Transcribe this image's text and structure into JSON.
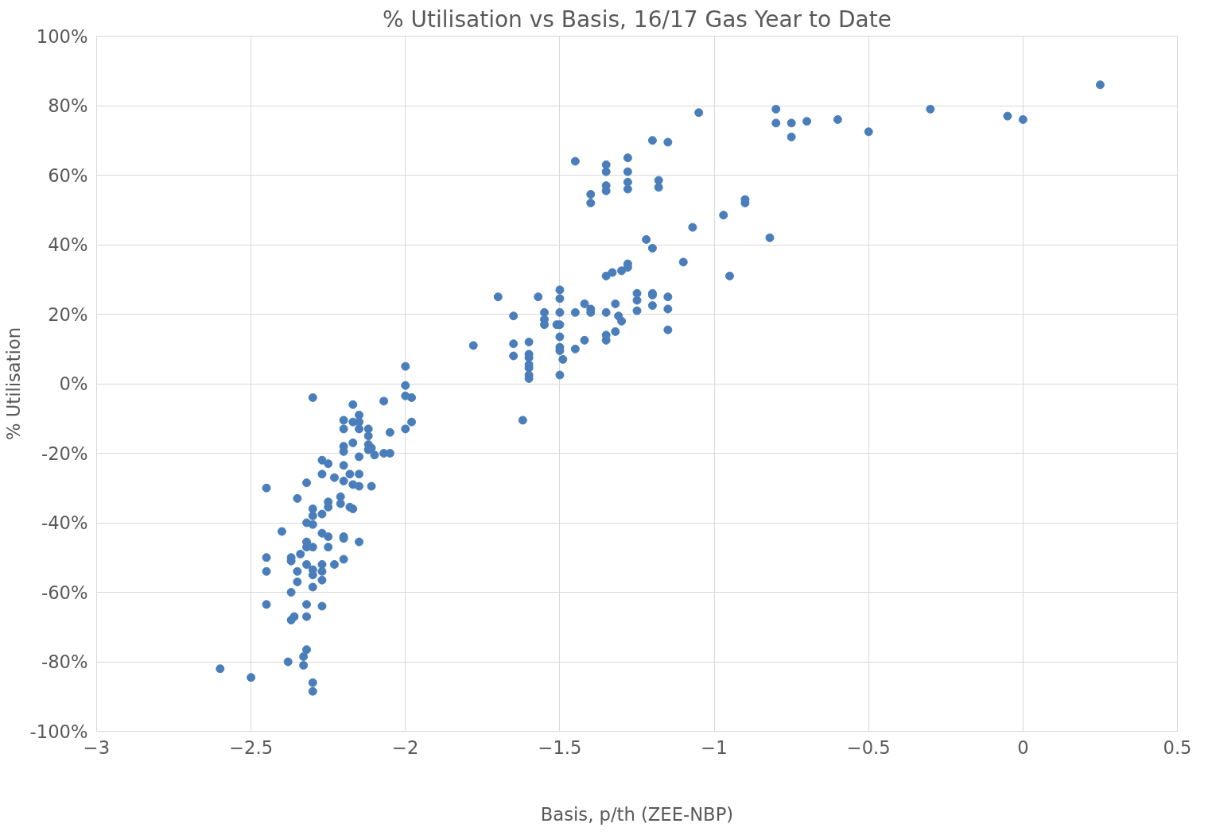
{
  "chart_data": {
    "type": "scatter",
    "title": "% Utilisation vs Basis, 16/17 Gas Year to Date",
    "xlabel": "Basis, p/th (ZEE-NBP)",
    "ylabel": "% Utilisation",
    "xlim": [
      -3,
      0.5
    ],
    "xticks": [
      -3,
      -2.5,
      -2,
      -1.5,
      -1,
      -0.5,
      0,
      0.5
    ],
    "ylim": [
      -100,
      100
    ],
    "yticks": [
      {
        "value": -100,
        "label": "-100%"
      },
      {
        "value": -80,
        "label": "-80%"
      },
      {
        "value": -60,
        "label": "-60%"
      },
      {
        "value": -40,
        "label": "-40%"
      },
      {
        "value": -20,
        "label": "-20%"
      },
      {
        "value": 0,
        "label": "0%"
      },
      {
        "value": 20,
        "label": "20%"
      },
      {
        "value": 40,
        "label": "40%"
      },
      {
        "value": 60,
        "label": "60%"
      },
      {
        "value": 80,
        "label": "80%"
      },
      {
        "value": 100,
        "label": "100%"
      }
    ],
    "grid": true,
    "marker": "circle",
    "series": [
      {
        "color": "#4a7ebb",
        "x": [
          0.25,
          0,
          -0.05,
          -0.3,
          -0.5,
          -0.6,
          -0.7,
          -0.75,
          -0.75,
          -0.8,
          -0.8,
          -1.05,
          -1.15,
          -1.2,
          -1.18,
          -1.18,
          -1.28,
          -1.28,
          -1.28,
          -1.28,
          -1.35,
          -1.35,
          -1.35,
          -1.35,
          -1.4,
          -1.4,
          -1.45,
          -0.9,
          -0.9,
          -0.97,
          -1.07,
          -0.82,
          -0.95,
          -1.1,
          -1.22,
          -1.2,
          -1.28,
          -1.28,
          -1.3,
          -1.33,
          -1.35,
          -1.7,
          -1.57,
          -1.5,
          -1.5,
          -1.42,
          -1.32,
          -1.25,
          -1.25,
          -1.2,
          -1.2,
          -1.15,
          -1.15,
          -1.2,
          -1.25,
          -1.65,
          -1.55,
          -1.55,
          -1.55,
          -1.51,
          -1.5,
          -1.5,
          -1.45,
          -1.4,
          -1.4,
          -1.35,
          -1.31,
          -1.3,
          -1.32,
          -1.35,
          -1.35,
          -1.42,
          -1.45,
          -1.15,
          -1.5,
          -1.5,
          -1.5,
          -1.49,
          -1.5,
          -1.6,
          -1.6,
          -1.6,
          -1.6,
          -1.6,
          -1.6,
          -1.6,
          -1.65,
          -1.65,
          -1.78,
          -1.62,
          -2.0,
          -2.0,
          -2.0,
          -1.98,
          -2.0,
          -1.98,
          -2.07,
          -2.3,
          -2.17,
          -2.15,
          -2.2,
          -2.17,
          -2.15,
          -2.15,
          -2.2,
          -2.12,
          -2.12,
          -2.05,
          -2.2,
          -2.17,
          -2.2,
          -2.12,
          -2.11,
          -2.12,
          -2.1,
          -2.07,
          -2.05,
          -2.15,
          -2.27,
          -2.25,
          -2.2,
          -2.15,
          -2.18,
          -2.23,
          -2.27,
          -2.32,
          -2.45,
          -2.2,
          -2.17,
          -2.15,
          -2.11,
          -2.21,
          -2.25,
          -2.21,
          -2.18,
          -2.17,
          -2.25,
          -2.35,
          -2.3,
          -2.3,
          -2.32,
          -2.3,
          -2.27,
          -2.27,
          -2.25,
          -2.2,
          -2.2,
          -2.15,
          -2.25,
          -2.3,
          -2.32,
          -2.32,
          -2.4,
          -2.34,
          -2.37,
          -2.37,
          -2.45,
          -2.45,
          -2.32,
          -2.3,
          -2.3,
          -2.27,
          -2.27,
          -2.27,
          -2.35,
          -2.35,
          -2.23,
          -2.2,
          -2.3,
          -2.37,
          -2.45,
          -2.32,
          -2.27,
          -2.32,
          -2.36,
          -2.37,
          -2.32,
          -2.33,
          -2.33,
          -2.38,
          -2.6,
          -2.5,
          -2.3,
          -2.3
        ],
        "values": [
          86,
          76,
          77,
          79,
          72.5,
          76,
          75.5,
          75,
          71,
          79,
          75,
          78,
          69.5,
          70,
          58.5,
          56.5,
          65,
          61,
          58,
          56,
          63,
          61,
          57,
          55.5,
          54.5,
          52,
          64,
          53,
          52,
          48.5,
          45,
          42,
          31,
          35,
          41.5,
          39,
          34.5,
          33.5,
          32.5,
          32,
          31,
          25,
          25,
          27,
          24.5,
          23,
          23,
          26,
          24,
          26,
          25.5,
          25,
          21.5,
          22.5,
          21,
          19.5,
          20.5,
          18.5,
          17,
          17,
          17,
          20.5,
          20.5,
          21.5,
          20.5,
          20.5,
          19.5,
          18,
          15,
          14,
          12.5,
          12.5,
          10,
          15.5,
          13.5,
          10.5,
          9.5,
          7,
          2.5,
          12,
          8.5,
          7.5,
          5.5,
          4.5,
          2.5,
          1.5,
          11.5,
          8,
          11,
          -10.5,
          5,
          -0.5,
          -3.5,
          -4,
          -13,
          -11,
          -5,
          -4,
          -6,
          -9,
          -10.5,
          -11,
          -11,
          -13,
          -13,
          -13,
          -15,
          -14,
          -18,
          -17,
          -19.5,
          -17.5,
          -18.5,
          -19,
          -20.5,
          -20,
          -20,
          -21,
          -22,
          -23,
          -23.5,
          -26,
          -26,
          -27,
          -26,
          -28.5,
          -30,
          -28,
          -29,
          -29.5,
          -29.5,
          -32.5,
          -34,
          -34.5,
          -35.5,
          -36,
          -35.5,
          -33,
          -36,
          -38,
          -40,
          -40.5,
          -37.5,
          -43,
          -44,
          -44,
          -44.5,
          -45.5,
          -47,
          -47,
          -45.5,
          -47,
          -42.5,
          -49,
          -50,
          -51,
          -50,
          -54,
          -52,
          -53.5,
          -55,
          -54,
          -52,
          -56.5,
          -54,
          -57,
          -52,
          -50.5,
          -58.5,
          -60,
          -63.5,
          -63.5,
          -64,
          -67,
          -67,
          -68,
          -76.5,
          -78.5,
          -81,
          -80,
          -82,
          -84.5,
          -86,
          -88.5
        ]
      }
    ]
  }
}
